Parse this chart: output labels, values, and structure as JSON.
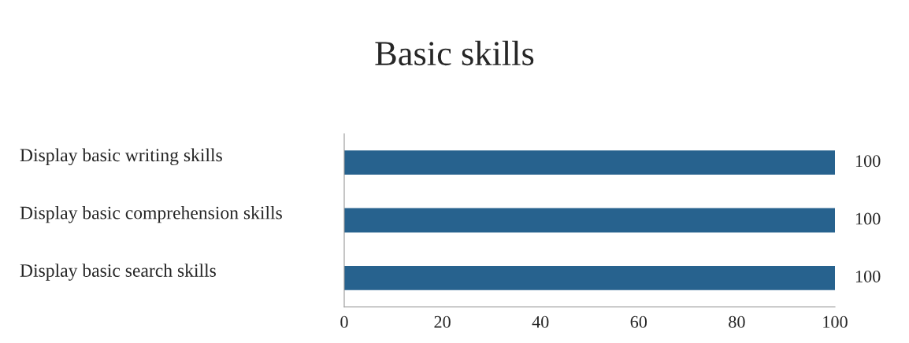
{
  "chart_data": {
    "type": "bar",
    "title": "Basic skills",
    "orientation": "horizontal",
    "categories": [
      "Display basic writing skills",
      "Display basic comprehension skills",
      "Display basic search skills"
    ],
    "values": [
      100,
      100,
      100
    ],
    "color": "#27628e",
    "xlim": [
      0,
      100
    ],
    "xticks": [
      0,
      20,
      40,
      60,
      80,
      100
    ],
    "grid": false,
    "data_labels": true
  }
}
